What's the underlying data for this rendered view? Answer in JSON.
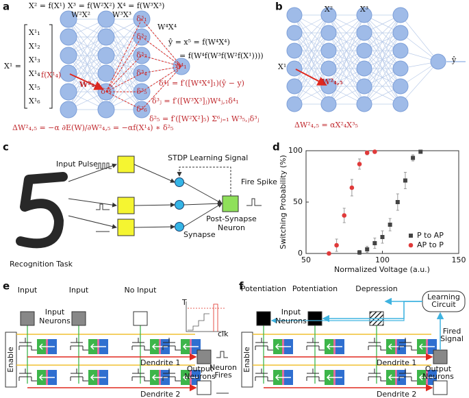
{
  "panels": {
    "a": {
      "label": "a",
      "forward_equations": "X² = f(X¹)  X³ = f(W²X²)  X⁴ = f(W³X³)",
      "layer_inputs": [
        "W²X²",
        "W³X³",
        "W⁴X⁴"
      ],
      "input_label": "X¹ =",
      "input_vector": [
        "X¹₁",
        "X¹₂",
        "X¹₃",
        "X¹₄",
        "X¹₅",
        "X¹₆"
      ],
      "activation_label": "f(X¹₄)",
      "weight_label": "W²₄,₅",
      "hidden_deltas": [
        "δ³₁",
        "δ³₂",
        "δ³₃",
        "δ³₄",
        "δ³₅",
        "δ³₆"
      ],
      "hidden2_delta": "δ²₅",
      "output_delta": "δ⁴₁",
      "output_equation": [
        "ŷ = x⁵ = f(W⁴X⁴)",
        "= f(W⁴f(W³f(W²f(X¹))))"
      ],
      "delta_equations": [
        "δ⁴₁ = f′([W⁴X⁴]₁)(ŷ − y)",
        "δ³ⱼ = f′([W³X³]ⱼ)W⁴ⱼ,₁δ⁴₁",
        "δ²₅ = f′([W²X²]₅) Σ⁶ⱼ₌₁ W³₅,ⱼδ³ⱼ"
      ],
      "update_equation": "ΔW²₄,₅ = −α ∂E(W)/∂W²₄,₅ = −αf(X¹₄) ∗ δ²₅"
    },
    "b": {
      "label": "b",
      "layer_labels": [
        "X²",
        "X³"
      ],
      "input_label": "X¹",
      "output_label": "ŷ",
      "weight_label": "W²₄,₅",
      "update_equation": "ΔW²₄,₅ = αX²₄X³₅"
    },
    "c": {
      "label": "c",
      "input_pulse": "Input Pulse",
      "learning_signal": "STDP Learning Signal",
      "fire_spike": "Fire Spike",
      "post_neuron": [
        "Post-Synapse",
        "Neuron"
      ],
      "synapse": "Synapse",
      "task": "Recognition Task"
    },
    "d": {
      "label": "d"
    },
    "e": {
      "label": "e",
      "inputs": [
        "Input",
        "Input",
        "No Input"
      ],
      "input_neurons": [
        "Input",
        "Neurons"
      ],
      "enable": "Enable",
      "dendrites": [
        "Dendrite 1",
        "Dendrite 2"
      ],
      "output_neurons": [
        "Output",
        "Neurons"
      ],
      "neuron_fires": [
        "Neuron",
        "Fires"
      ],
      "inset_axes": [
        "T",
        "clk"
      ]
    },
    "f": {
      "label": "f",
      "inputs": [
        "Potentiation",
        "Potentiation",
        "Depression"
      ],
      "input_neurons": [
        "Input",
        "Neurons"
      ],
      "learning_circuit": [
        "Learning",
        "Circuit"
      ],
      "fired_signal": [
        "Fired",
        "Signal"
      ],
      "enable": "Enable",
      "dendrites": [
        "Dendrite 1",
        "Dendrite 2"
      ],
      "output_neurons": [
        "Output",
        "Neurons"
      ]
    }
  },
  "chart_data": {
    "type": "scatter",
    "xlabel": "Normalized Voltage (a.u.)",
    "ylabel": "Switching Probability (%)",
    "xlim": [
      50,
      150
    ],
    "xticks": [
      50,
      100,
      150
    ],
    "ylim": [
      0,
      100
    ],
    "yticks": [
      0,
      50,
      100
    ],
    "legend": "lower right",
    "series": [
      {
        "name": "P to AP",
        "color": "#444444",
        "marker": "square",
        "x": [
          85,
          90,
          95,
          100,
          105,
          110,
          115,
          120,
          125
        ],
        "values": [
          1,
          4,
          10,
          16,
          28,
          50,
          71,
          93,
          99
        ],
        "errors": [
          2,
          3,
          5,
          6,
          6,
          8,
          8,
          3,
          1
        ]
      },
      {
        "name": "AP to P",
        "color": "#e03a3a",
        "marker": "circle",
        "x": [
          65,
          70,
          75,
          80,
          85,
          90,
          95
        ],
        "values": [
          0,
          8,
          37,
          64,
          87,
          98,
          99
        ],
        "errors": [
          1,
          6,
          7,
          8,
          5,
          2,
          1
        ]
      }
    ]
  }
}
